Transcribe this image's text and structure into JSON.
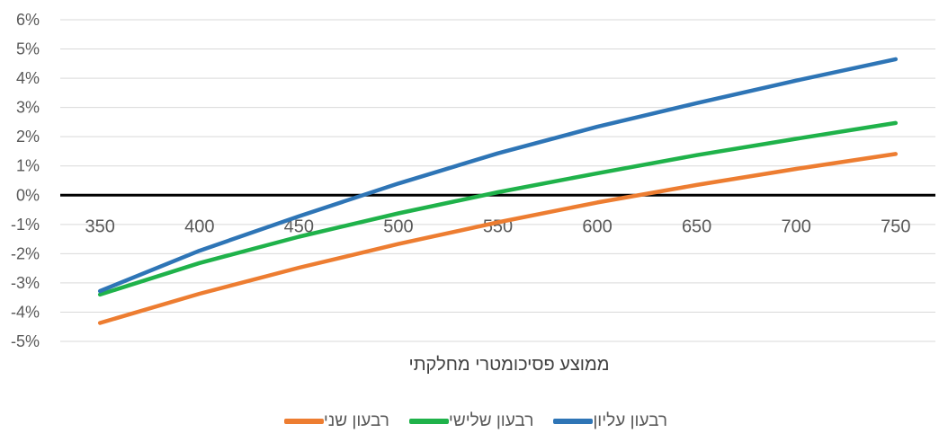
{
  "chart_data": {
    "type": "line",
    "title": "",
    "xlabel": "ממוצע פסיכומטרי מחלקתי",
    "ylabel": "",
    "x": [
      350,
      400,
      450,
      500,
      550,
      600,
      650,
      700,
      750
    ],
    "x_tick_labels": [
      "350",
      "400",
      "450",
      "500",
      "550",
      "600",
      "650",
      "700",
      "750"
    ],
    "y_tick_labels": [
      "6%",
      "5%",
      "4%",
      "3%",
      "2%",
      "1%",
      "0%",
      "-1%",
      "-2%",
      "-3%",
      "-4%",
      "-5%"
    ],
    "ylim": [
      -0.05,
      0.06
    ],
    "y_format": "percent",
    "grid": true,
    "legend_position": "bottom",
    "series": [
      {
        "name": "רבעון שני",
        "color": "#ED7D31",
        "values": [
          -0.0437,
          -0.0337,
          -0.0248,
          -0.0167,
          -0.0093,
          -0.0025,
          0.0035,
          0.009,
          0.0141
        ]
      },
      {
        "name": "רבעון שלישי",
        "color": "#1FB24A",
        "values": [
          -0.034,
          -0.0232,
          -0.0142,
          -0.0062,
          0.001,
          0.0075,
          0.0137,
          0.0193,
          0.0247
        ]
      },
      {
        "name": "רבעון עליון",
        "color": "#2E75B6",
        "values": [
          -0.0328,
          -0.019,
          -0.0072,
          0.004,
          0.0143,
          0.0234,
          0.0315,
          0.0392,
          0.0465
        ]
      }
    ],
    "zero_line_color": "#000000",
    "grid_color": "#D9D9D9",
    "legend_order": [
      2,
      1,
      0
    ]
  }
}
